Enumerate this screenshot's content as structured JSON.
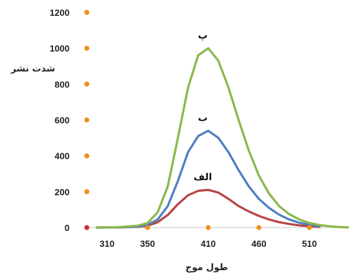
{
  "chart_data": {
    "type": "line",
    "xlabel": "طول موج",
    "ylabel": "شدت نشر",
    "xlim": [
      290,
      548
    ],
    "ylim": [
      0,
      1200
    ],
    "x_ticks": [
      310,
      350,
      410,
      460,
      510
    ],
    "y_ticks": [
      0,
      200,
      400,
      600,
      800,
      1000,
      1200
    ],
    "grid": false,
    "marker_color": "#f28c1c",
    "origin_marker_color": "#d62e2e",
    "series": [
      {
        "name": "پ",
        "color": "#8ab84a",
        "x": [
          300,
          320,
          340,
          350,
          360,
          370,
          380,
          390,
          400,
          410,
          420,
          430,
          440,
          450,
          460,
          470,
          480,
          490,
          500,
          510,
          520,
          530,
          540,
          548
        ],
        "y": [
          0,
          2,
          10,
          25,
          85,
          230,
          500,
          780,
          960,
          1000,
          930,
          780,
          600,
          430,
          290,
          190,
          120,
          75,
          45,
          25,
          14,
          7,
          3,
          1
        ]
      },
      {
        "name": "ب",
        "color": "#4f7fc0",
        "x": [
          300,
          320,
          340,
          350,
          360,
          370,
          380,
          390,
          400,
          410,
          420,
          430,
          440,
          450,
          460,
          470,
          480,
          490,
          500,
          510,
          520
        ],
        "y": [
          0,
          1,
          5,
          15,
          45,
          120,
          260,
          420,
          510,
          540,
          500,
          420,
          320,
          230,
          160,
          110,
          72,
          45,
          27,
          15,
          8
        ]
      },
      {
        "name": "الف",
        "color": "#b84545",
        "x": [
          300,
          320,
          340,
          350,
          360,
          370,
          380,
          390,
          400,
          410,
          420,
          430,
          440,
          450,
          460,
          470,
          480,
          490,
          500,
          510,
          520
        ],
        "y": [
          0,
          1,
          4,
          10,
          30,
          70,
          130,
          180,
          205,
          210,
          195,
          160,
          120,
          90,
          65,
          45,
          30,
          20,
          12,
          7,
          4
        ]
      }
    ]
  }
}
